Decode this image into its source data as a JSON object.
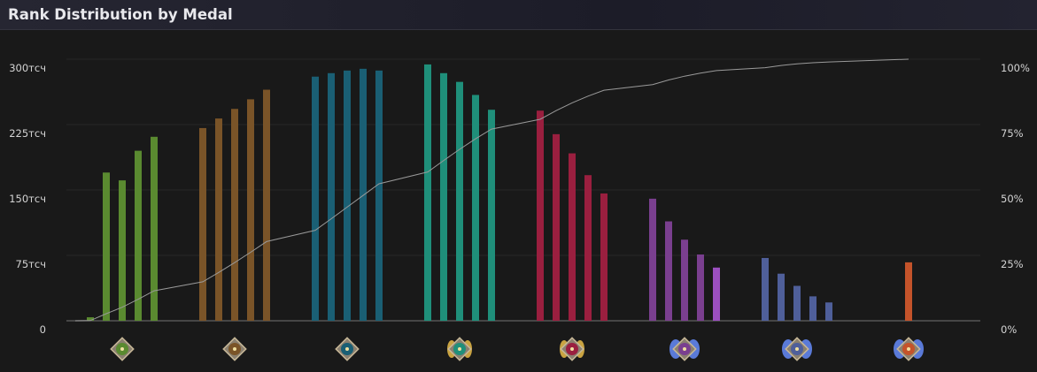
{
  "header": {
    "title": "Rank Distribution by Medal"
  },
  "chart_data": {
    "type": "bar",
    "title": "Rank Distribution by Medal",
    "categories": [
      "Herald",
      "Guardian",
      "Crusader",
      "Archon",
      "Legend",
      "Ancient",
      "Divine",
      "Immortal"
    ],
    "icons": [
      "herald-medal-icon",
      "guardian-medal-icon",
      "crusader-medal-icon",
      "archon-medal-icon",
      "legend-medal-icon",
      "ancient-medal-icon",
      "divine-medal-icon",
      "immortal-medal-icon"
    ],
    "colors": [
      "#5a8a30",
      "#7a5428",
      "#1a5f74",
      "#1f8f7a",
      "#9a1f3f",
      "#7a3f8f",
      "#4f5f9a",
      "#c4532a"
    ],
    "last_star_color": "#9b4fbf",
    "series_values": [
      [
        4,
        170,
        161,
        195,
        211
      ],
      [
        221,
        232,
        243,
        254,
        265
      ],
      [
        280,
        284,
        287,
        289,
        287
      ],
      [
        294,
        284,
        274,
        259,
        242
      ],
      [
        241,
        214,
        192,
        167,
        146
      ],
      [
        140,
        114,
        93,
        76,
        61
      ],
      [
        72,
        54,
        40,
        28,
        21
      ],
      [
        67
      ]
    ],
    "y_left": {
      "ticks": [
        0,
        75,
        150,
        225,
        300
      ],
      "labels": [
        "0",
        "75тсч",
        "150тсч",
        "225тсч",
        "300тсч"
      ],
      "range": [
        0,
        300
      ]
    },
    "y_right": {
      "ticks": [
        0,
        25,
        50,
        75,
        100
      ],
      "labels": [
        "0%",
        "25%",
        "50%",
        "75%",
        "100%"
      ],
      "range": [
        0,
        100
      ]
    },
    "cumulative_line": true,
    "grid": true
  }
}
